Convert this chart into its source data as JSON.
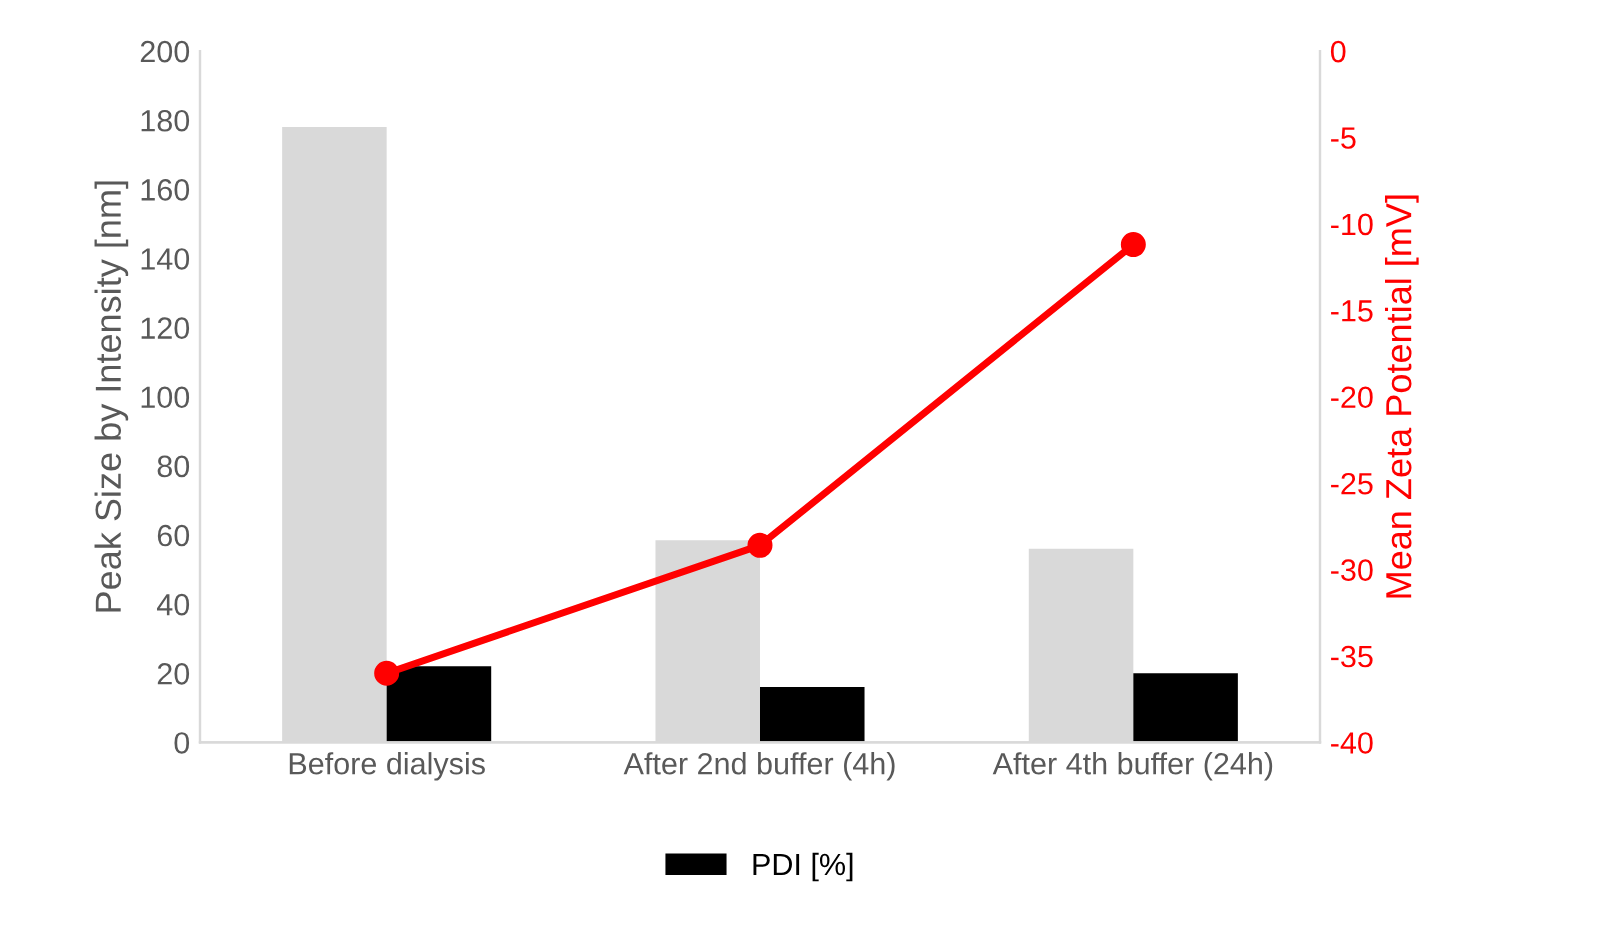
{
  "chart_data": {
    "type": "bar",
    "ylabel": "Peak Size by Intensity [nm]",
    "y2label": "Mean Zeta Potential [mV]",
    "categories": [
      "Before dialysis",
      "After 2nd buffer (4h)",
      "After 4th buffer (24h)"
    ],
    "series": [
      {
        "color": "#d9d9d9",
        "values": [
          178,
          58.5,
          56
        ]
      },
      {
        "name": "PDI [%]",
        "color": "#000000",
        "values": [
          22,
          16,
          20
        ]
      },
      {
        "type": "line",
        "axis": "y2",
        "color": "#ff0000",
        "values": [
          -36,
          -28.6,
          -11.2
        ],
        "marker": "circle"
      }
    ],
    "ylim": [
      0,
      200
    ],
    "yticks": [
      0,
      20,
      40,
      60,
      80,
      100,
      120,
      140,
      160,
      180,
      200
    ],
    "y2lim": [
      -40,
      0
    ],
    "y2ticks": [
      -40,
      -35,
      -30,
      -25,
      -20,
      -15,
      -10,
      -5,
      0
    ],
    "legend": "bottom",
    "grid": false
  }
}
